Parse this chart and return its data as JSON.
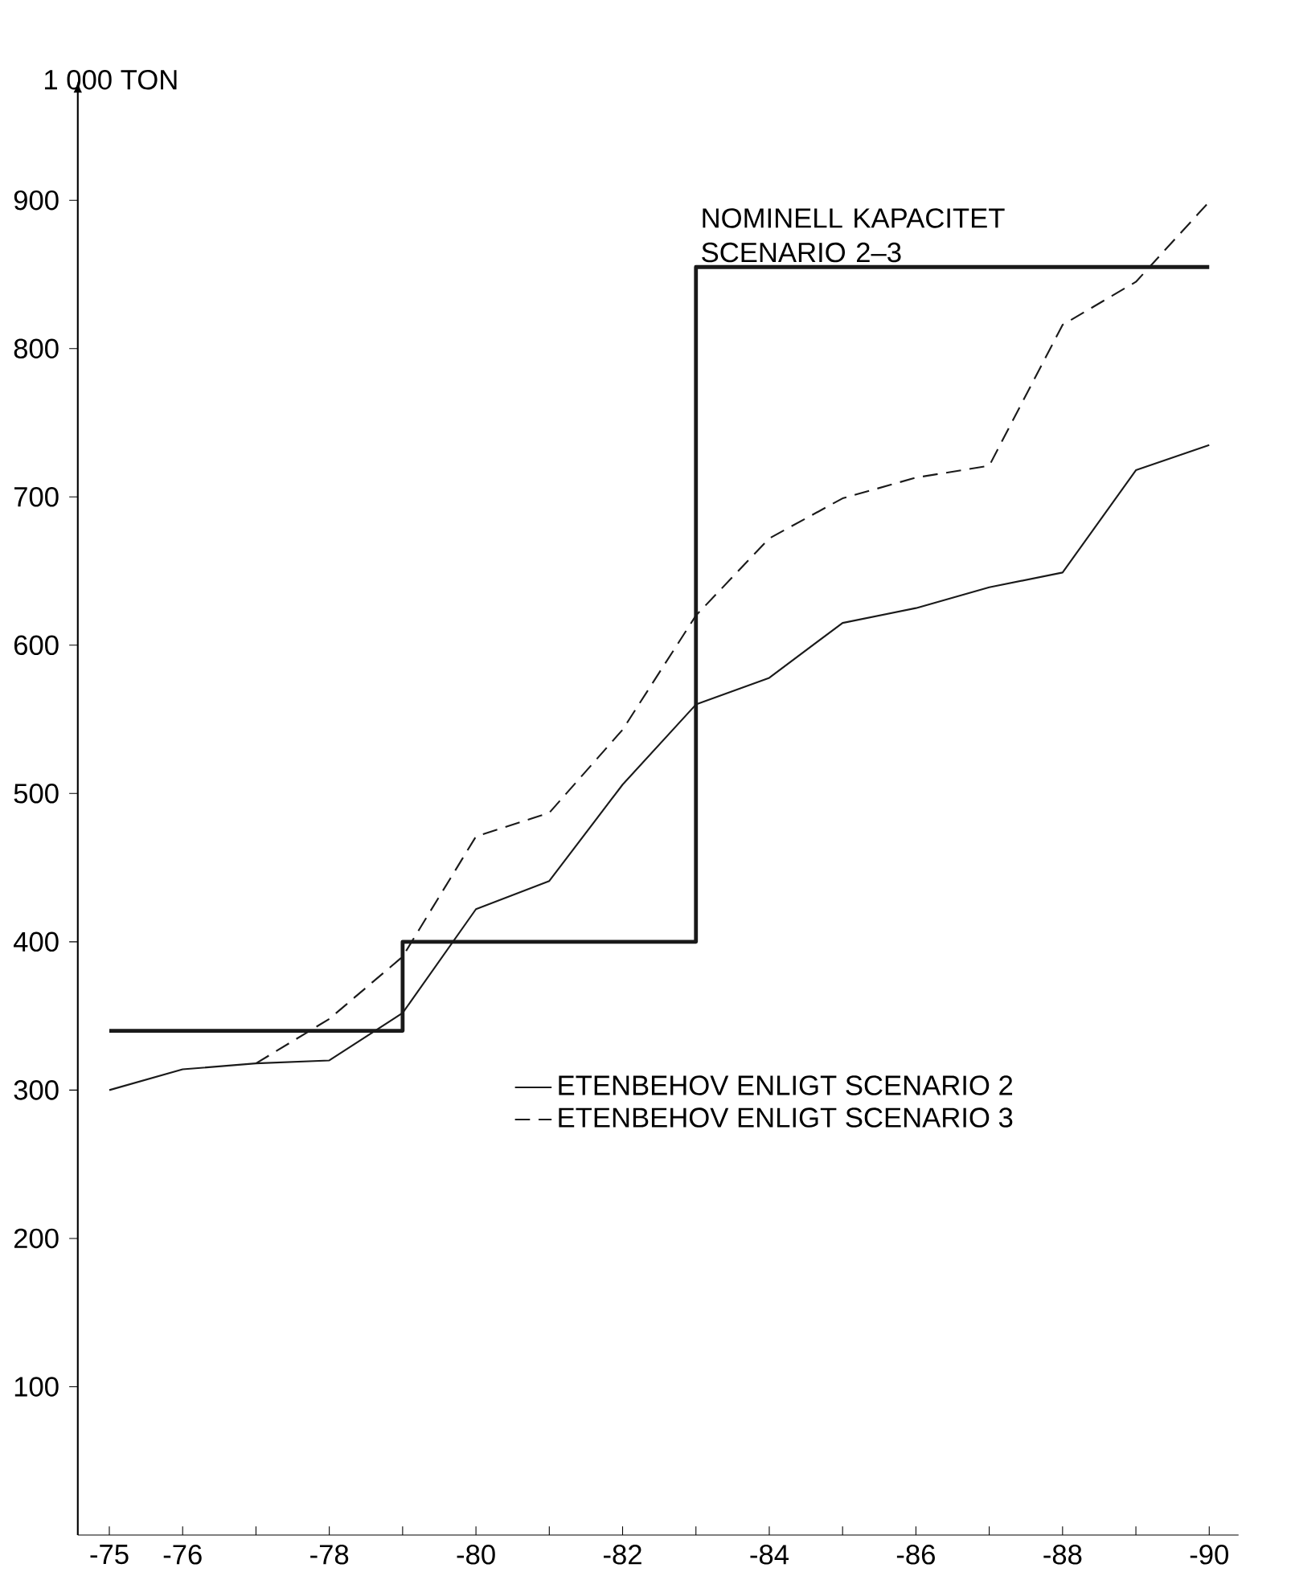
{
  "chart_data": {
    "type": "line",
    "ylabel": "1 000 TON",
    "categories": [
      "-75",
      "-76",
      null,
      "-78",
      null,
      "-80",
      null,
      "-82",
      null,
      "-84",
      null,
      "-86",
      null,
      "-88",
      null,
      "-90"
    ],
    "ylim": [
      0,
      970
    ],
    "yticks": [
      100,
      200,
      300,
      400,
      500,
      600,
      700,
      800,
      900
    ],
    "grid": false,
    "legend": "right",
    "marker": "none",
    "series": [
      {
        "name": "NOMINELL KAPACITET SCENARIO 2–3",
        "type": "step",
        "color": "#1a1a1a",
        "line_style": "solid",
        "values": [
          340,
          340,
          340,
          340,
          400,
          400,
          400,
          400,
          855,
          855,
          855,
          855,
          855,
          855,
          855,
          855
        ]
      },
      {
        "name": "ETENBEHOV ENLIGT SCENARIO 2",
        "type": "line",
        "color": "#1a1a1a",
        "line_style": "solid",
        "values": [
          300,
          314,
          318,
          320,
          352,
          422,
          441,
          506,
          560,
          578,
          615,
          625,
          639,
          649,
          718,
          735
        ]
      },
      {
        "name": "ETENBEHOV ENLIGT SCENARIO 3",
        "type": "line",
        "color": "#1a1a1a",
        "line_style": "dashed",
        "values": [
          null,
          null,
          318,
          348,
          390,
          471,
          487,
          543,
          620,
          672,
          699,
          713,
          721,
          816,
          845,
          899
        ]
      }
    ]
  }
}
